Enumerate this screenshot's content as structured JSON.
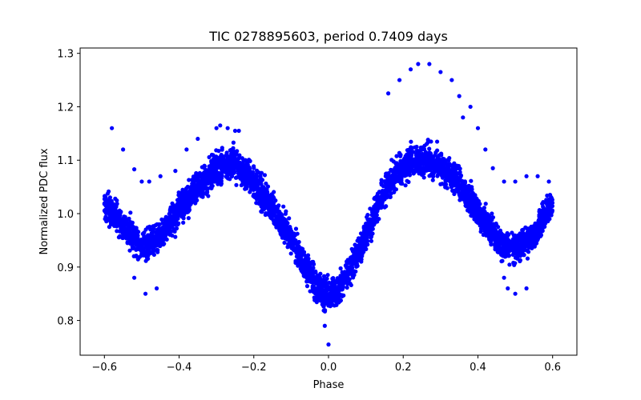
{
  "chart_data": {
    "type": "scatter",
    "title": "TIC 0278895603, period 0.7409 days",
    "xlabel": "Phase",
    "ylabel": "Normalized PDC flux",
    "xlim": [
      -0.665,
      0.665
    ],
    "ylim": [
      0.735,
      1.31
    ],
    "xticks": [
      -0.6,
      -0.4,
      -0.2,
      0.0,
      0.2,
      0.4,
      0.6
    ],
    "xtick_labels": [
      "−0.6",
      "−0.4",
      "−0.2",
      "0.0",
      "0.2",
      "0.4",
      "0.6"
    ],
    "yticks": [
      0.8,
      0.9,
      1.0,
      1.1,
      1.2,
      1.3
    ],
    "ytick_labels": [
      "0.8",
      "0.9",
      "1.0",
      "1.1",
      "1.2",
      "1.3"
    ],
    "grid": false,
    "marker_color": "#0000ff",
    "series": [
      {
        "x_range": [
          -0.6,
          0.6
        ],
        "profile": [
          [
            -0.6,
            1.02
          ],
          [
            -0.55,
            0.975
          ],
          [
            -0.5,
            0.94
          ],
          [
            -0.45,
            0.955
          ],
          [
            -0.4,
            1.005
          ],
          [
            -0.35,
            1.05
          ],
          [
            -0.3,
            1.085
          ],
          [
            -0.26,
            1.095
          ],
          [
            -0.22,
            1.075
          ],
          [
            -0.18,
            1.04
          ],
          [
            -0.14,
            1.0
          ],
          [
            -0.1,
            0.955
          ],
          [
            -0.06,
            0.9
          ],
          [
            -0.03,
            0.86
          ],
          [
            0.0,
            0.845
          ],
          [
            0.03,
            0.86
          ],
          [
            0.06,
            0.9
          ],
          [
            0.1,
            0.96
          ],
          [
            0.14,
            1.03
          ],
          [
            0.18,
            1.075
          ],
          [
            0.22,
            1.095
          ],
          [
            0.26,
            1.1
          ],
          [
            0.3,
            1.09
          ],
          [
            0.34,
            1.065
          ],
          [
            0.38,
            1.025
          ],
          [
            0.42,
            0.985
          ],
          [
            0.46,
            0.945
          ],
          [
            0.5,
            0.935
          ],
          [
            0.55,
            0.96
          ],
          [
            0.6,
            1.02
          ]
        ],
        "scatter_half_width": 0.03,
        "outliers": [
          [
            -0.58,
            1.16
          ],
          [
            -0.55,
            1.12
          ],
          [
            -0.52,
            1.083
          ],
          [
            -0.5,
            1.06
          ],
          [
            -0.48,
            1.06
          ],
          [
            -0.45,
            1.07
          ],
          [
            -0.41,
            1.08
          ],
          [
            -0.38,
            1.12
          ],
          [
            -0.35,
            1.14
          ],
          [
            -0.3,
            1.16
          ],
          [
            -0.29,
            1.165
          ],
          [
            -0.27,
            1.16
          ],
          [
            -0.25,
            1.155
          ],
          [
            -0.24,
            1.155
          ],
          [
            -0.49,
            0.85
          ],
          [
            -0.46,
            0.86
          ],
          [
            -0.52,
            0.88
          ],
          [
            -0.01,
            0.79
          ],
          [
            0.0,
            0.755
          ],
          [
            0.16,
            1.225
          ],
          [
            0.19,
            1.25
          ],
          [
            0.22,
            1.27
          ],
          [
            0.24,
            1.28
          ],
          [
            0.27,
            1.28
          ],
          [
            0.3,
            1.265
          ],
          [
            0.33,
            1.25
          ],
          [
            0.35,
            1.22
          ],
          [
            0.38,
            1.2
          ],
          [
            0.36,
            1.18
          ],
          [
            0.4,
            1.16
          ],
          [
            0.42,
            1.12
          ],
          [
            0.44,
            1.085
          ],
          [
            0.47,
            1.06
          ],
          [
            0.5,
            1.06
          ],
          [
            0.53,
            1.07
          ],
          [
            0.56,
            1.07
          ],
          [
            0.59,
            1.06
          ],
          [
            0.48,
            0.86
          ],
          [
            0.5,
            0.85
          ],
          [
            0.53,
            0.86
          ],
          [
            0.47,
            0.88
          ]
        ]
      }
    ]
  }
}
